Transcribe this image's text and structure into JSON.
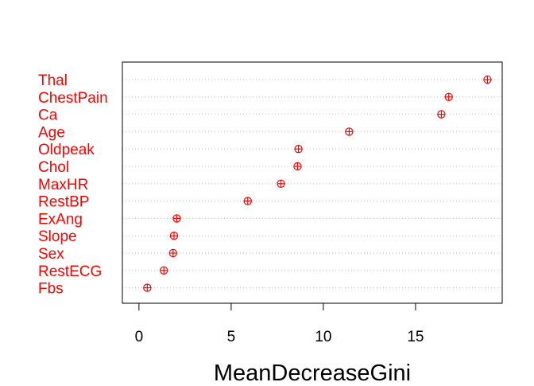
{
  "chart_data": {
    "type": "scatter",
    "subtype": "dotchart",
    "title": "",
    "xlabel": "MeanDecreaseGini",
    "ylabel": "",
    "xlim": [
      -0.9,
      19.7
    ],
    "xticks": [
      0,
      5,
      10,
      15
    ],
    "grid": "horizontal dotted",
    "categories": [
      "Thal",
      "ChestPain",
      "Ca",
      "Age",
      "Oldpeak",
      "Chol",
      "MaxHR",
      "RestBP",
      "ExAng",
      "Slope",
      "Sex",
      "RestECG",
      "Fbs"
    ],
    "values": [
      18.9,
      16.8,
      16.4,
      11.4,
      8.65,
      8.6,
      7.7,
      5.9,
      2.05,
      1.9,
      1.85,
      1.35,
      0.45
    ],
    "colors": {
      "labels": "#ff0000",
      "points": "#ff0000",
      "grid": "#bebebe",
      "axis": "#000000"
    }
  }
}
